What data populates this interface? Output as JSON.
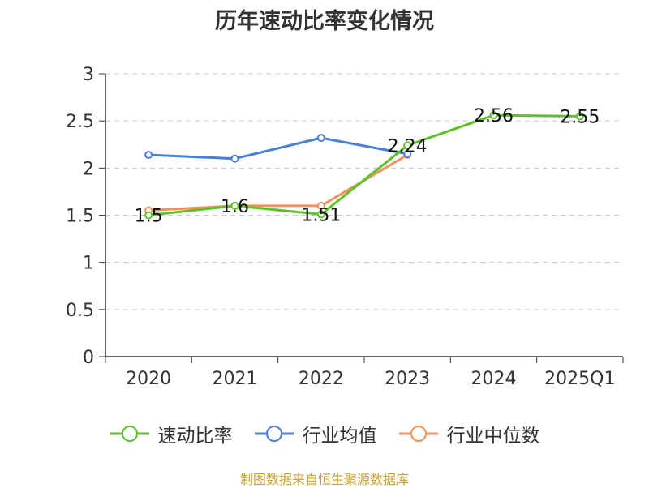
{
  "chart_data": {
    "type": "line",
    "title": "历年速动比率变化情况",
    "categories": [
      "2020",
      "2021",
      "2022",
      "2023",
      "2024",
      "2025Q1"
    ],
    "y_ticks": [
      "0",
      "0.5",
      "1",
      "1.5",
      "2",
      "2.5",
      "3"
    ],
    "ylim": [
      0,
      3
    ],
    "grid": true,
    "legend_position": "bottom",
    "series": [
      {
        "name": "速动比率",
        "color": "#5cc228",
        "values": [
          1.5,
          1.6,
          1.51,
          2.24,
          2.56,
          2.55
        ],
        "labels": [
          "1.5",
          "1.6",
          "1.51",
          "2.24",
          "2.56",
          "2.55"
        ]
      },
      {
        "name": "行业均值",
        "color": "#4a7fd8",
        "values": [
          2.14,
          2.1,
          2.32,
          2.15,
          null,
          null
        ]
      },
      {
        "name": "行业中位数",
        "color": "#f0925a",
        "values": [
          1.55,
          1.6,
          1.6,
          2.14,
          null,
          null
        ]
      }
    ]
  },
  "footer": {
    "source": "制图数据来自恒生聚源数据库"
  }
}
